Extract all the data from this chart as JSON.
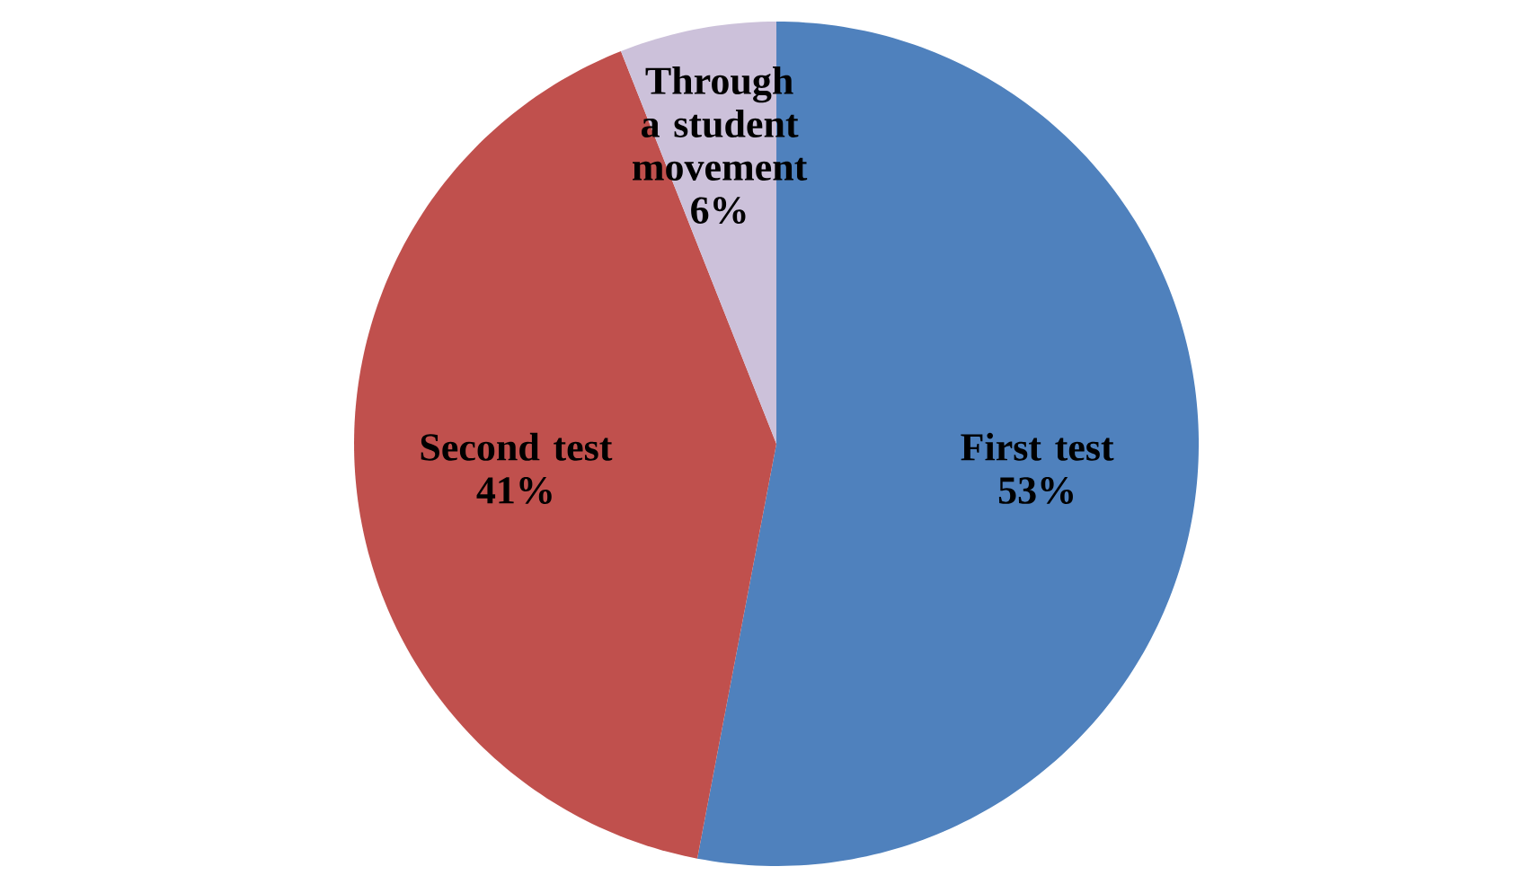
{
  "chart_data": {
    "type": "pie",
    "categories": [
      "First test",
      "Second test",
      "Through a student movement"
    ],
    "values": [
      53,
      41,
      6
    ],
    "value_labels": [
      "53%",
      "41%",
      "6%"
    ],
    "colors": [
      "#4f81bd",
      "#c0504d",
      "#ccc1da"
    ]
  }
}
